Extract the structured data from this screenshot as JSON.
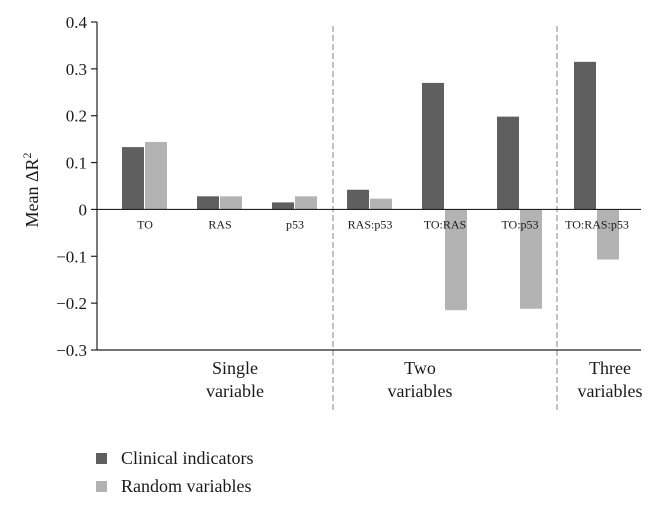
{
  "chart_data": {
    "type": "bar",
    "title": "",
    "xlabel": "",
    "ylabel": "Mean ΔR²",
    "ylim": [
      -0.3,
      0.4
    ],
    "yticks": [
      {
        "value": 0.4,
        "label": "0.4"
      },
      {
        "value": 0.3,
        "label": "0.3"
      },
      {
        "value": 0.2,
        "label": "0.2"
      },
      {
        "value": 0.1,
        "label": "0.1"
      },
      {
        "value": 0,
        "label": "0"
      },
      {
        "value": -0.1,
        "label": "−0.1"
      },
      {
        "value": -0.2,
        "label": "−0.2"
      },
      {
        "value": -0.3,
        "label": "−0.3"
      }
    ],
    "categories": [
      "TO",
      "RAS",
      "p53",
      "RAS:p53",
      "TO:RAS",
      "TO:p53",
      "TO:RAS:p53"
    ],
    "series": [
      {
        "name": "Clinical indicators",
        "color": "#5f5f5f",
        "values": [
          0.133,
          0.028,
          0.015,
          0.042,
          0.27,
          0.198,
          0.315
        ]
      },
      {
        "name": "Random variables",
        "color": "#b3b3b3",
        "values": [
          0.144,
          0.028,
          0.028,
          0.023,
          -0.215,
          -0.212,
          -0.107
        ]
      }
    ],
    "groups": [
      {
        "label_lines": [
          "Single",
          "variable"
        ],
        "categories": [
          "TO",
          "RAS",
          "p53"
        ]
      },
      {
        "label_lines": [
          "Two",
          "variables"
        ],
        "categories": [
          "RAS:p53",
          "TO:RAS",
          "TO:p53"
        ]
      },
      {
        "label_lines": [
          "Three",
          "variables"
        ],
        "categories": [
          "TO:RAS:p53"
        ]
      }
    ],
    "legend_position": "bottom-left"
  }
}
